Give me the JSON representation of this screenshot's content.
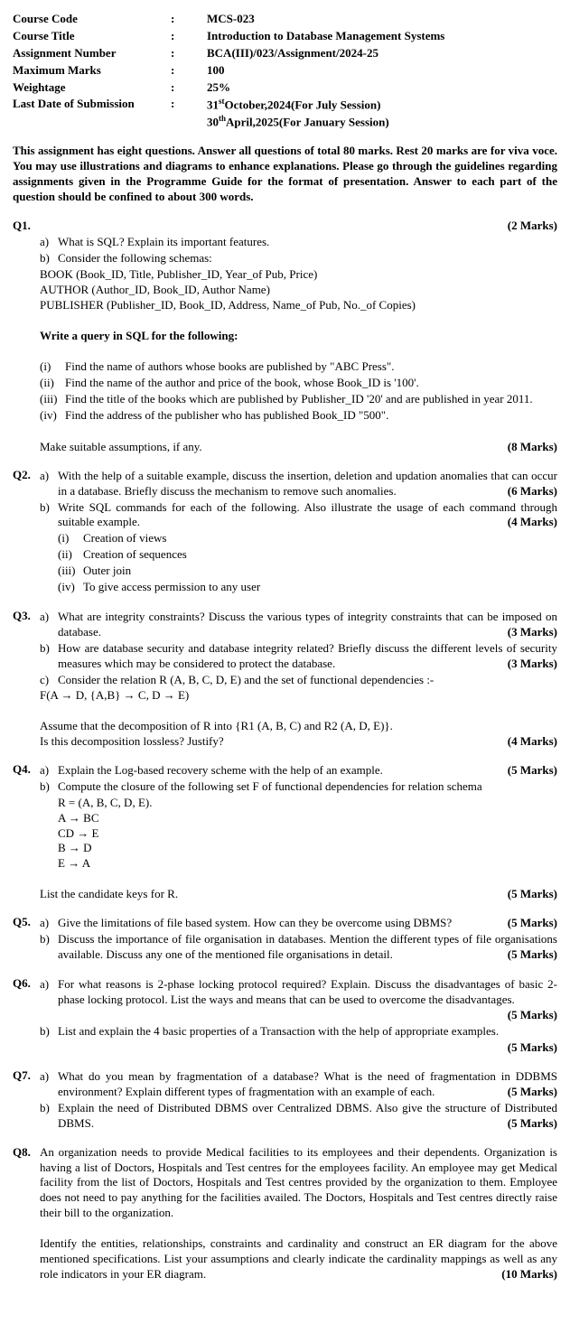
{
  "header": {
    "rows": [
      {
        "label": "Course Code",
        "value": "MCS-023"
      },
      {
        "label": "Course Title",
        "value": "Introduction to Database Management Systems"
      },
      {
        "label": "Assignment Number",
        "value": "BCA(III)/023/Assignment/2024-25"
      },
      {
        "label": "Maximum Marks",
        "value": "100"
      },
      {
        "label": "Weightage",
        "value": "25%"
      }
    ],
    "last_label": "Last Date of Submission",
    "last_v1_pre": "31",
    "last_v1_sup": "st",
    "last_v1_post": "October,2024(For July Session)",
    "last_v2_pre": "30",
    "last_v2_sup": "th",
    "last_v2_post": "April,2025(For January Session)"
  },
  "instructions": "This assignment has eight questions. Answer all questions of total 80 marks. Rest 20 marks are for viva voce.  You may use illustrations and diagrams to enhance explanations.  Please go through the guidelines regarding assignments given in the Programme Guide for the format of presentation.  Answer to each part of the question should be confined to about 300 words.",
  "q1": {
    "num": "Q1.",
    "top_marks": "(2 Marks)",
    "a": "What is SQL? Explain its important features.",
    "b": "Consider the following schemas:",
    "schema1": "BOOK (Book_ID, Title, Publisher_ID, Year_of Pub, Price)",
    "schema2": "AUTHOR (Author_ID, Book_ID, Author Name)",
    "schema3": "PUBLISHER (Publisher_ID, Book_ID, Address, Name_of Pub, No._of Copies)",
    "write": "Write a query in SQL for the following:",
    "i": "Find the name of authors whose books are published by \"ABC Press\".",
    "ii": "Find the name of the author and price of the book, whose Book_ID is '100'.",
    "iii": "Find the title of the books which are published by Publisher_ID '20' and are published in year 2011.",
    "iv": "Find the address of the publisher who has published Book_ID \"500\".",
    "assume": "Make suitable assumptions, if any.",
    "marks2": "(8 Marks)"
  },
  "q2": {
    "num": "Q2.",
    "a": "With the help of a suitable example, discuss the insertion, deletion and updation anomalies that can occur in a database. Briefly discuss the mechanism to remove such anomalies.",
    "a_marks": "(6 Marks)",
    "b": "Write SQL commands for each of the following. Also illustrate the usage of each command through suitable example.",
    "b_marks": "(4 Marks)",
    "i": "Creation of views",
    "ii": "Creation of sequences",
    "iii": "Outer join",
    "iv": "To give access permission to any user"
  },
  "q3": {
    "num": "Q3.",
    "a": "What are integrity constraints? Discuss the various types of integrity constraints that can be imposed on database.",
    "a_marks": "(3 Marks)",
    "b": "How are database security and database integrity related? Briefly discuss the different levels of security measures which may be considered to protect the database.",
    "b_marks": "(3 Marks)",
    "c1": "Consider the relation R (A, B, C, D, E) and the set of functional dependencies :-",
    "c2": "F(A  → D, {A,B}  → C, D → E)",
    "c3": "Assume that the decomposition of R into {R1 (A, B, C) and R2 (A, D, E)}.",
    "c4": "Is this decomposition lossless? Justify?",
    "c_marks": "(4 Marks)"
  },
  "q4": {
    "num": "Q4.",
    "a": "Explain the Log-based recovery scheme with the help of an example.",
    "a_marks": "(5 Marks)",
    "b": "Compute the closure of the following set F of functional dependencies for relation schema",
    "r": "R = (A, B, C, D, E).",
    "f1": "A → BC",
    "f2": "CD → E",
    "f3": "B → D",
    "f4": "E → A",
    "list": "List the candidate keys for R.",
    "b_marks": "(5 Marks)"
  },
  "q5": {
    "num": "Q5.",
    "a": "Give the limitations of file based system. How can they be overcome using DBMS?",
    "a_marks": "(5 Marks)",
    "b": "Discuss the importance of file organisation in databases. Mention the different types of file organisations available. Discuss any one of the mentioned file organisations in detail.",
    "b_marks": "(5 Marks)"
  },
  "q6": {
    "num": "Q6.",
    "a": "For what reasons is 2-phase locking protocol required? Explain. Discuss the disadvantages of basic 2-phase locking protocol. List the ways and means that can be used to overcome the disadvantages.",
    "a_marks": "(5 Marks)",
    "b": "List and explain the 4 basic properties of a Transaction with the help of appropriate examples.",
    "b_marks": "(5 Marks)"
  },
  "q7": {
    "num": "Q7.",
    "a": "What do you mean by fragmentation of a database? What is the need of fragmentation in DDBMS environment? Explain different types of fragmentation with an example of each.",
    "a_marks": "(5 Marks)",
    "b": "Explain the need of Distributed DBMS over Centralized DBMS. Also give the structure of Distributed DBMS.",
    "b_marks": "(5 Marks)"
  },
  "q8": {
    "num": "Q8.",
    "p1": "An organization needs to provide Medical facilities to its employees and their dependents. Organization is having a list of Doctors, Hospitals and Test centres for the employees facility. An employee may get Medical facility from the list of Doctors, Hospitals and Test centres provided by the organization to them. Employee does not need to pay anything for the facilities availed. The Doctors, Hospitals and Test centres directly raise their bill to the organization.",
    "p2": "Identify the entities, relationships, constraints and cardinality and construct an ER diagram for the above mentioned specifications. List your assumptions and clearly indicate the cardinality mappings as well as any role indicators in your ER diagram.",
    "marks": "(10 Marks)"
  }
}
